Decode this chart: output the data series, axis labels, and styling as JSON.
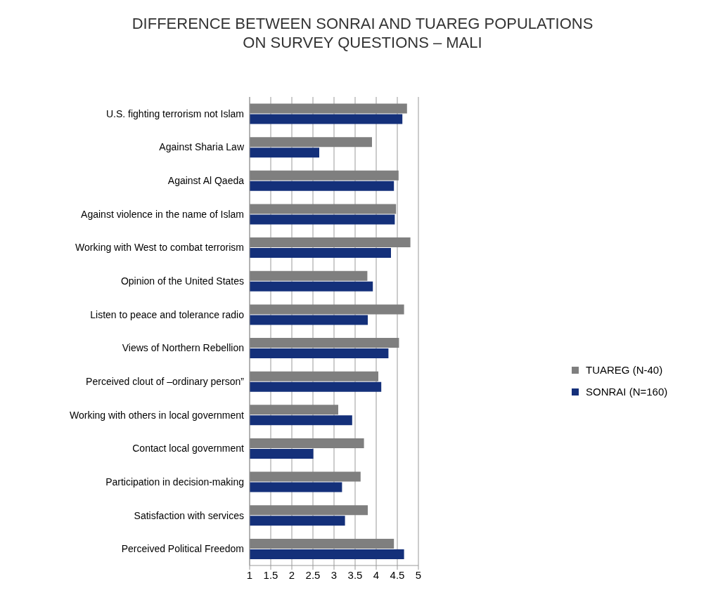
{
  "chart_data": {
    "type": "bar",
    "orientation": "horizontal",
    "title": "DIFFERENCE BETWEEN SONRAI AND TUAREG POPULATIONS\nON SURVEY QUESTIONS – MALI",
    "categories": [
      "U.S. fighting terrorism not Islam",
      "Against Sharia Law",
      "Against Al Qaeda",
      "Against violence in the name of Islam",
      "Working with West to combat terrorism",
      "Opinion of the United States",
      "Listen to peace and tolerance radio",
      "Views of Northern Rebellion",
      "Perceived clout of –ordinary person”",
      "Working with others in local government",
      "Contact local government",
      "Participation in decision-making",
      "Satisfaction with services",
      "Perceived Political Freedom"
    ],
    "series": [
      {
        "name": "TUAREG (N-40)",
        "color": "#7f7f7f",
        "values": [
          4.73,
          3.9,
          4.53,
          4.47,
          4.81,
          3.79,
          4.66,
          4.54,
          4.05,
          3.1,
          3.71,
          3.63,
          3.8,
          4.42
        ]
      },
      {
        "name": "SONRAI (N=160)",
        "color": "#14307a",
        "values": [
          4.62,
          2.65,
          4.42,
          4.44,
          4.35,
          3.92,
          3.8,
          4.29,
          4.12,
          3.43,
          2.51,
          3.19,
          3.26,
          4.66
        ]
      }
    ],
    "xlim": [
      1,
      5
    ],
    "xticks": [
      1,
      1.5,
      2,
      2.5,
      3,
      3.5,
      4,
      4.5,
      5
    ],
    "grid": "x",
    "legend": "right"
  }
}
